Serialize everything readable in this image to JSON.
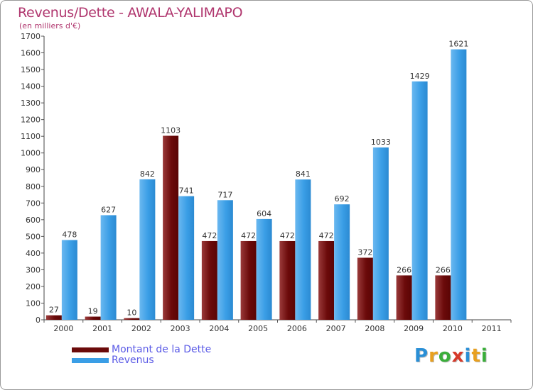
{
  "chart_data": {
    "type": "bar",
    "title": "Revenus/Dette - AWALA-YALIMAPO",
    "subtitle": "(en milliers d'€)",
    "categories": [
      "2000",
      "2001",
      "2002",
      "2003",
      "2004",
      "2005",
      "2006",
      "2007",
      "2008",
      "2009",
      "2010",
      "2011"
    ],
    "series": [
      {
        "name": "Montant de la Dette",
        "color": "#6b0a0a",
        "values": [
          27,
          19,
          10,
          1103,
          472,
          472,
          472,
          472,
          372,
          266,
          266,
          null
        ]
      },
      {
        "name": "Revenus",
        "color": "#3a9ee6",
        "values": [
          478,
          627,
          842,
          741,
          717,
          604,
          841,
          692,
          1033,
          1429,
          1621,
          null
        ]
      }
    ],
    "yticks": [
      0,
      100,
      200,
      300,
      400,
      500,
      600,
      700,
      800,
      900,
      1000,
      1100,
      1200,
      1300,
      1400,
      1500,
      1600,
      1700
    ],
    "ylim": [
      0,
      1700
    ],
    "grid": false,
    "legend_position": "bottom-left"
  },
  "logo": {
    "letters": [
      {
        "ch": "P",
        "color": "#2a8fd6"
      },
      {
        "ch": "r",
        "color": "#e8a020"
      },
      {
        "ch": "o",
        "color": "#3aae3a"
      },
      {
        "ch": "x",
        "color": "#d63a2a"
      },
      {
        "ch": "i",
        "color": "#2a8fd6"
      },
      {
        "ch": "t",
        "color": "#e8a020"
      },
      {
        "ch": "i",
        "color": "#3aae3a"
      }
    ]
  }
}
